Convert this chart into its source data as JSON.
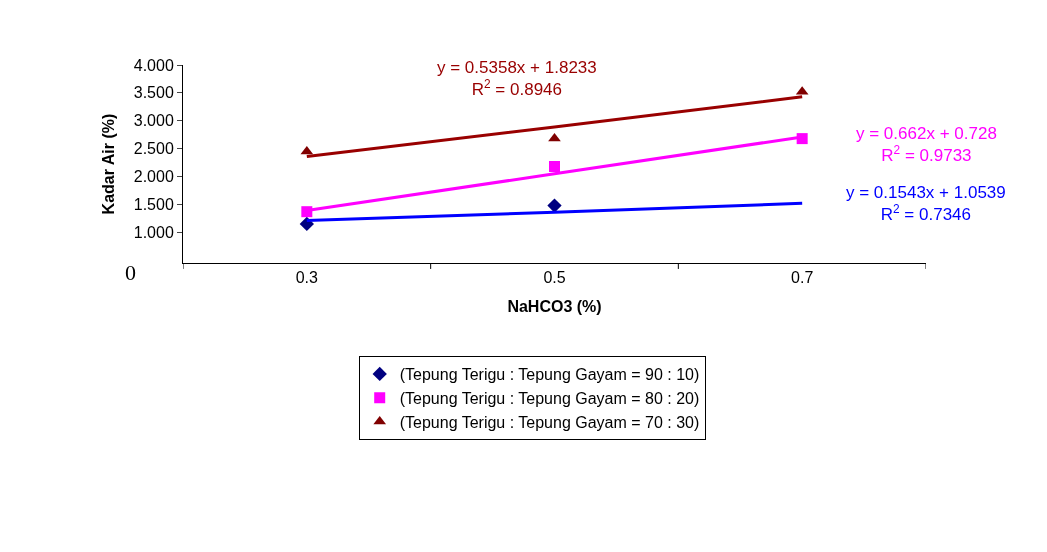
{
  "chart_data": {
    "type": "scatter",
    "xlabel": "NaHCO3 (%)",
    "ylabel": "Kadar Air (%)",
    "categories": [
      "0.3",
      "0.5",
      "0.7"
    ],
    "series": [
      {
        "name": "(Tepung Terigu : Tepung Gayam = 90 : 10)",
        "color": "#000080",
        "marker": "diamond",
        "values": [
          1.15,
          1.48,
          null
        ]
      },
      {
        "name": "(Tepung Terigu : Tepung Gayam = 80 : 20)",
        "color": "#ff00ff",
        "marker": "square",
        "values": [
          1.37,
          2.18,
          2.68
        ]
      },
      {
        "name": "(Tepung Terigu : Tepung Gayam = 70 : 30)",
        "color": "#800000",
        "marker": "triangle",
        "values": [
          2.45,
          2.68,
          3.52
        ]
      },
      {
        "type": "line",
        "color": "#0000ff",
        "marker": "none",
        "x": [
          "0.3",
          "0.5",
          "0.7"
        ],
        "values": [
          1.21,
          1.36,
          1.52
        ]
      },
      {
        "type": "line",
        "color": "#ff00ff",
        "marker": "none",
        "x": [
          "0.3",
          "0.5",
          "0.7"
        ],
        "values": [
          1.39,
          2.05,
          2.71
        ]
      },
      {
        "type": "line",
        "color": "#990000",
        "marker": "none",
        "x": [
          "0.3",
          "0.5",
          "0.7"
        ],
        "values": [
          2.36,
          2.89,
          3.43
        ]
      }
    ],
    "annotations": [
      "y = 0.1543x + 1.0539\nR$^{2}$ = 0.7346",
      "y = 0.662x + 0.728\nR$^{2}$ = 0.9733",
      "y = 0.5358x + 1.8233\nR$^{2}$ = 0.8946",
      "0"
    ],
    "ylim": [
      0.45,
      4.0
    ],
    "yticks": [
      {
        "value": 1,
        "label": "1.000"
      },
      {
        "value": 1.5,
        "label": "1.500"
      },
      {
        "value": 2,
        "label": "2.000"
      },
      {
        "value": 2.5,
        "label": "2.500"
      },
      {
        "value": 3,
        "label": "3.000"
      },
      {
        "value": 3.5,
        "label": "3.500"
      },
      {
        "value": 4,
        "label": "4.000"
      }
    ],
    "legend": "bottom"
  }
}
